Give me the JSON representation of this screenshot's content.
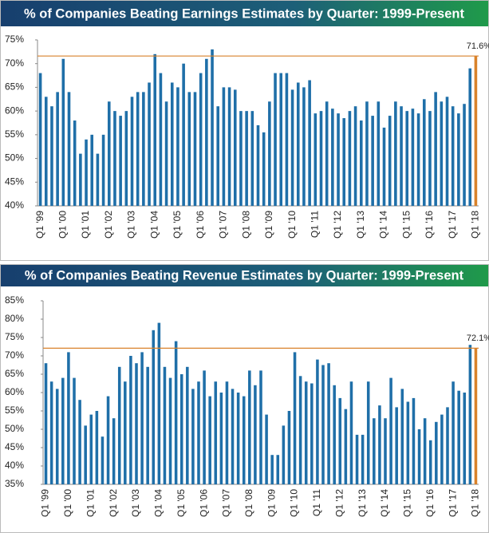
{
  "chart_data": [
    {
      "type": "bar",
      "title": "% of Companies Beating Earnings Estimates by Quarter: 1999-Present",
      "categories": [
        "Q1 '99",
        null,
        null,
        null,
        "Q1 '00",
        null,
        null,
        null,
        "Q1 '01",
        null,
        null,
        null,
        "Q1 '02",
        null,
        null,
        null,
        "Q1 '03",
        null,
        null,
        null,
        "Q1 '04",
        null,
        null,
        null,
        "Q1 '05",
        null,
        null,
        null,
        "Q1 '06",
        null,
        null,
        null,
        "Q1 '07",
        null,
        null,
        null,
        "Q1 '08",
        null,
        null,
        null,
        "Q1 '09",
        null,
        null,
        null,
        "Q1 '10",
        null,
        null,
        null,
        "Q1 '11",
        null,
        null,
        null,
        "Q1 '12",
        null,
        null,
        null,
        "Q1 '13",
        null,
        null,
        null,
        "Q1 '14",
        null,
        null,
        null,
        "Q1 '15",
        null,
        null,
        null,
        "Q1 '16",
        null,
        null,
        null,
        "Q1 '17",
        null,
        null,
        null,
        "Q1 '18"
      ],
      "values": [
        68,
        63,
        61,
        64,
        71,
        64,
        58,
        51,
        54,
        55,
        51,
        55,
        62,
        60,
        59,
        60,
        63,
        64,
        64,
        66,
        72,
        68,
        62,
        66,
        65,
        70,
        64,
        64,
        68,
        71,
        73,
        61,
        65,
        65,
        64.5,
        60,
        60,
        60,
        57,
        55.5,
        62,
        68,
        68,
        68,
        64.5,
        66,
        65,
        66.5,
        59.5,
        60,
        62,
        60.5,
        59.5,
        58.5,
        60,
        61,
        58,
        62,
        59,
        62,
        56.5,
        59,
        62,
        61,
        60,
        60.5,
        59.5,
        62.5,
        60,
        64,
        62,
        63,
        61,
        59.5,
        61.5,
        69,
        71.6
      ],
      "value_labels": [
        null,
        null,
        null,
        null,
        null,
        null,
        null,
        null,
        null,
        null,
        null,
        null,
        null,
        null,
        null,
        null,
        null,
        null,
        null,
        null,
        null,
        null,
        null,
        null,
        null,
        null,
        null,
        null,
        null,
        null,
        null,
        null,
        null,
        null,
        null,
        null,
        null,
        null,
        null,
        null,
        null,
        null,
        null,
        null,
        null,
        null,
        null,
        null,
        null,
        null,
        null,
        null,
        null,
        null,
        null,
        null,
        null,
        null,
        null,
        null,
        null,
        null,
        null,
        null,
        null,
        null,
        null,
        null,
        null,
        null,
        null,
        null,
        null,
        null,
        null,
        null,
        "71.6%"
      ],
      "color": "#1f6fa8",
      "highlight_color": "#d9822b",
      "ylim": [
        40,
        75
      ],
      "yticks": [
        {
          "value": 40,
          "label": "40%"
        },
        {
          "value": 45,
          "label": "45%"
        },
        {
          "value": 50,
          "label": "50%"
        },
        {
          "value": 55,
          "label": "55%"
        },
        {
          "value": 60,
          "label": "60%"
        },
        {
          "value": 65,
          "label": "65%"
        },
        {
          "value": 70,
          "label": "70%"
        },
        {
          "value": 75,
          "label": "75%"
        }
      ]
    },
    {
      "type": "bar",
      "title": "% of Companies Beating Revenue Estimates by Quarter: 1999-Present",
      "categories": [
        "Q1 '99",
        null,
        null,
        null,
        "Q1 '00",
        null,
        null,
        null,
        "Q1 '01",
        null,
        null,
        null,
        "Q1 '02",
        null,
        null,
        null,
        "Q1 '03",
        null,
        null,
        null,
        "Q1 '04",
        null,
        null,
        null,
        "Q1 '05",
        null,
        null,
        null,
        "Q1 '06",
        null,
        null,
        null,
        "Q1 '07",
        null,
        null,
        null,
        "Q1 '08",
        null,
        null,
        null,
        "Q1 '09",
        null,
        null,
        null,
        "Q1 '10",
        null,
        null,
        null,
        "Q1 '11",
        null,
        null,
        null,
        "Q1 '12",
        null,
        null,
        null,
        "Q1 '13",
        null,
        null,
        null,
        "Q1 '14",
        null,
        null,
        null,
        "Q1 '15",
        null,
        null,
        null,
        "Q1 '16",
        null,
        null,
        null,
        "Q1 '17",
        null,
        null,
        null,
        "Q1 '18"
      ],
      "values": [
        68,
        63,
        61,
        64,
        71,
        64,
        58,
        51,
        54,
        55,
        48,
        59,
        53,
        67,
        63,
        70,
        68,
        71,
        67,
        77,
        79,
        67,
        64,
        74,
        65,
        67,
        61,
        63,
        66,
        59,
        63,
        60,
        63,
        61,
        60,
        59,
        66,
        62,
        66,
        54,
        43,
        43,
        51,
        55,
        71,
        64.5,
        63,
        62.5,
        69,
        67.5,
        68,
        62,
        58.5,
        55.5,
        63,
        48.5,
        48.5,
        63,
        53,
        56.5,
        53,
        64,
        56,
        61,
        57.5,
        58.5,
        50,
        53,
        47,
        52,
        54,
        56,
        63,
        60.5,
        60,
        73,
        72.1
      ],
      "value_labels": [
        null,
        null,
        null,
        null,
        null,
        null,
        null,
        null,
        null,
        null,
        null,
        null,
        null,
        null,
        null,
        null,
        null,
        null,
        null,
        null,
        null,
        null,
        null,
        null,
        null,
        null,
        null,
        null,
        null,
        null,
        null,
        null,
        null,
        null,
        null,
        null,
        null,
        null,
        null,
        null,
        null,
        null,
        null,
        null,
        null,
        null,
        null,
        null,
        null,
        null,
        null,
        null,
        null,
        null,
        null,
        null,
        null,
        null,
        null,
        null,
        null,
        null,
        null,
        null,
        null,
        null,
        null,
        null,
        null,
        null,
        null,
        null,
        null,
        null,
        null,
        null,
        "72.1%"
      ],
      "color": "#1f6fa8",
      "highlight_color": "#d9822b",
      "ylim": [
        35,
        85
      ],
      "yticks": [
        {
          "value": 35,
          "label": "35%"
        },
        {
          "value": 40,
          "label": "40%"
        },
        {
          "value": 45,
          "label": "45%"
        },
        {
          "value": 50,
          "label": "50%"
        },
        {
          "value": 55,
          "label": "55%"
        },
        {
          "value": 60,
          "label": "60%"
        },
        {
          "value": 65,
          "label": "65%"
        },
        {
          "value": 70,
          "label": "70%"
        },
        {
          "value": 75,
          "label": "75%"
        },
        {
          "value": 80,
          "label": "80%"
        },
        {
          "value": 85,
          "label": "85%"
        }
      ]
    }
  ]
}
